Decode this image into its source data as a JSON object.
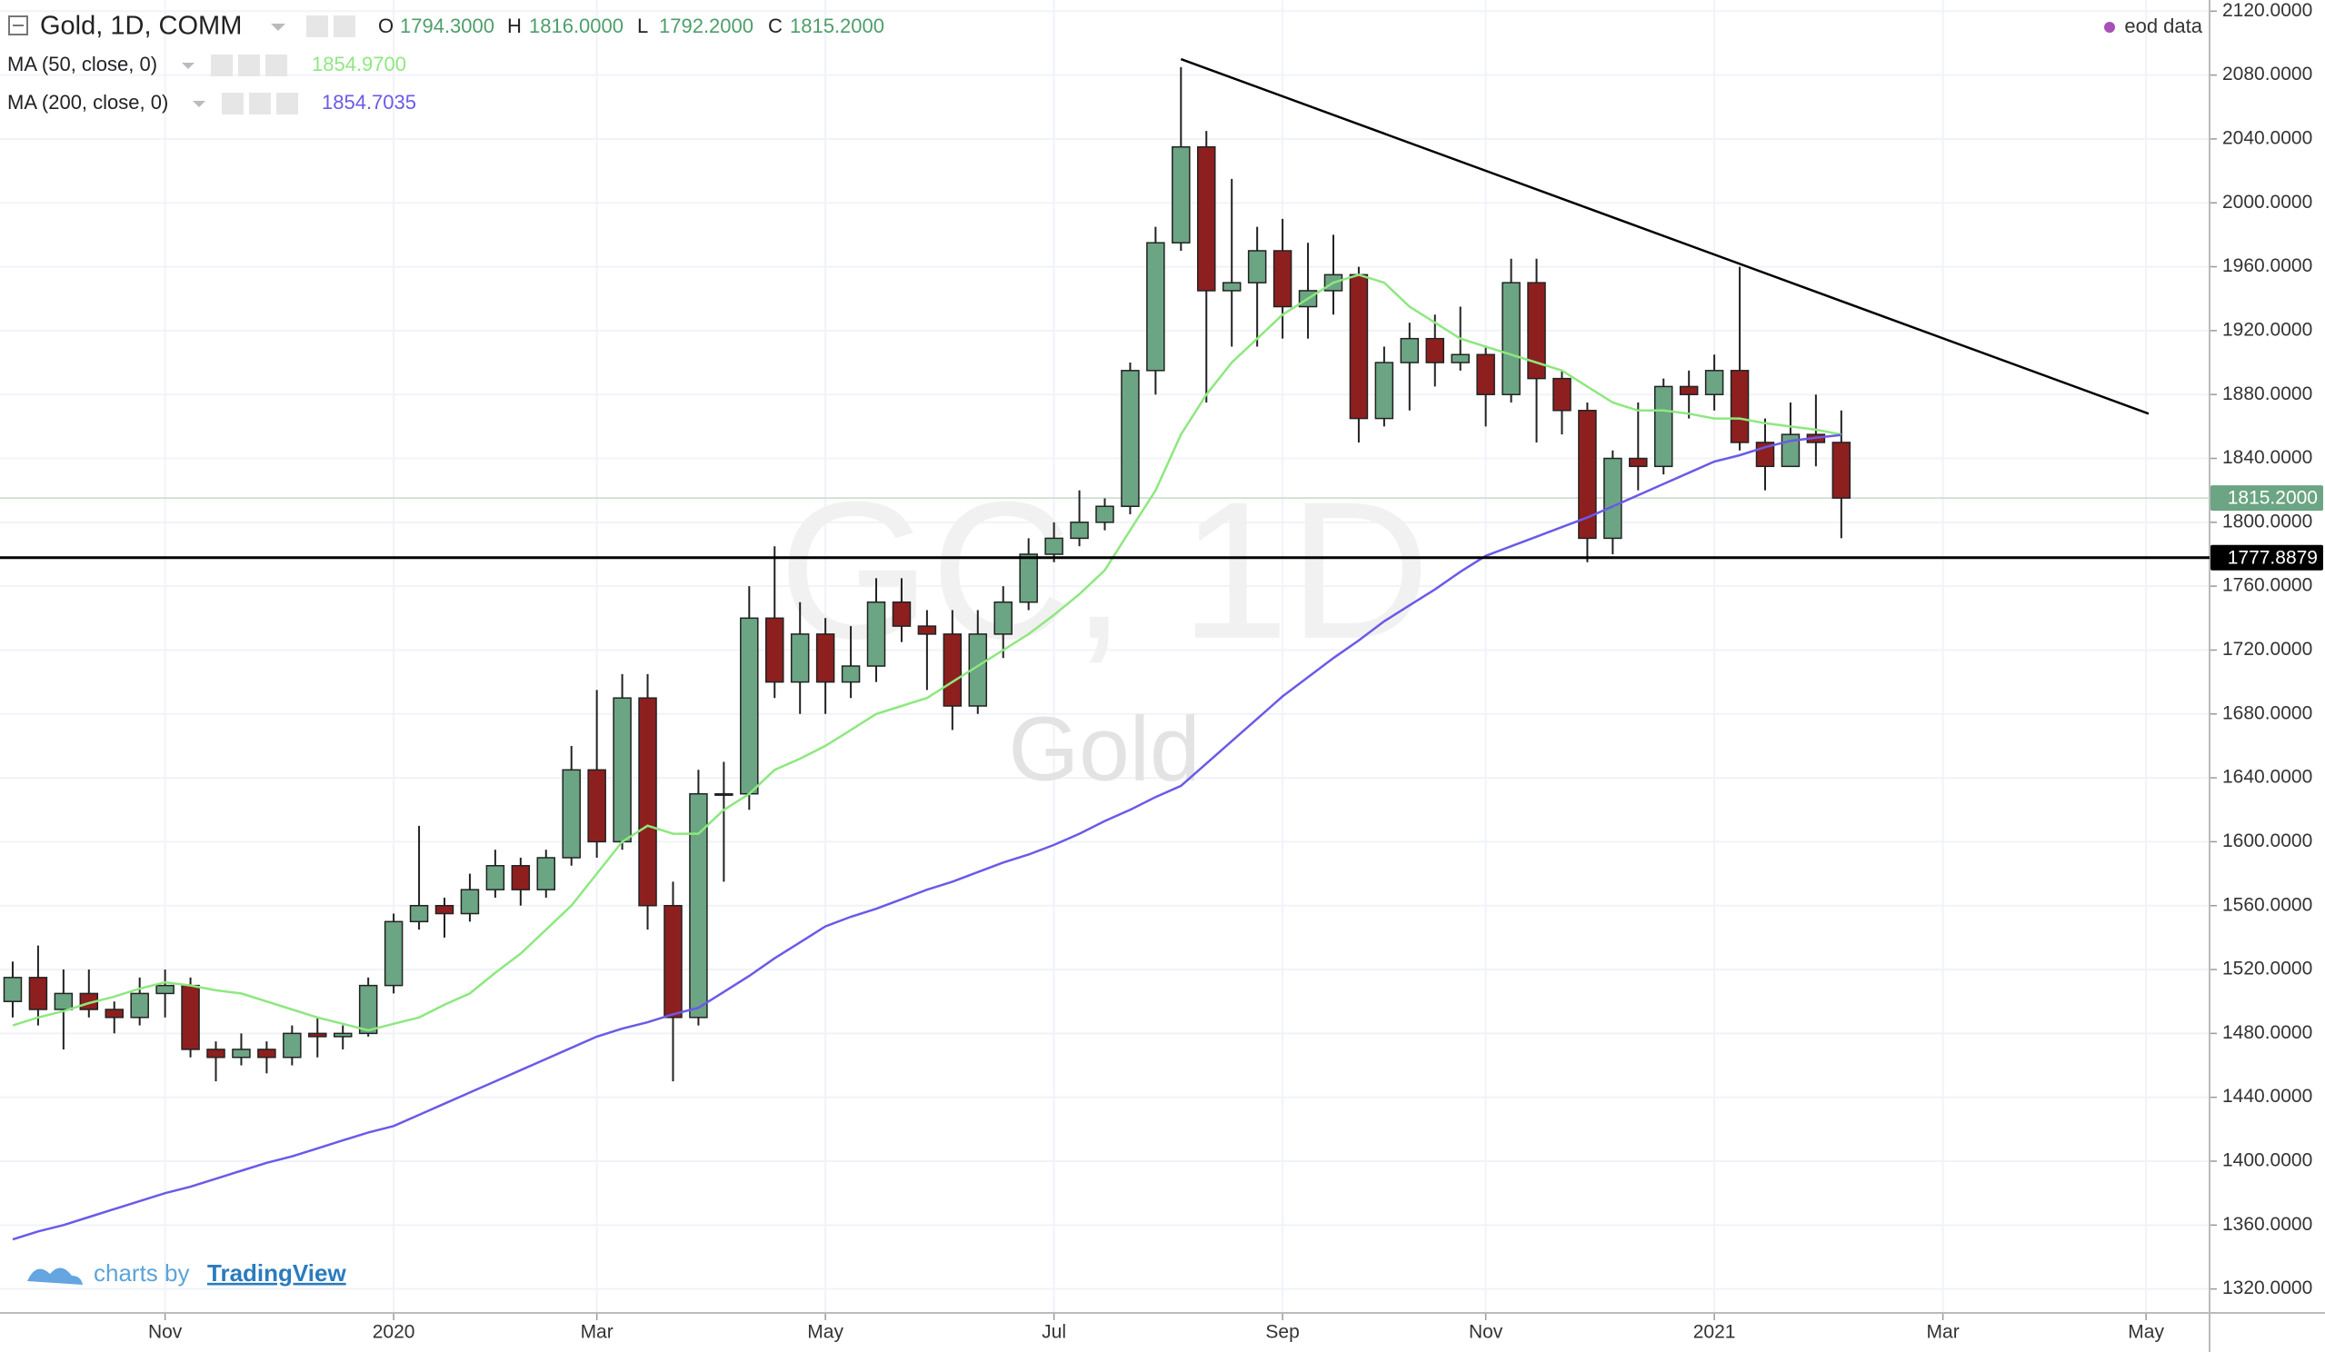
{
  "chart_data": {
    "type": "candlestick",
    "title": "Gold, 1D, COMM",
    "ohlc": [
      {
        "key": "O",
        "value": 1794.3,
        "label": "1794.3000"
      },
      {
        "key": "H",
        "value": 1816,
        "label": "1816.0000"
      },
      {
        "key": "L",
        "value": 1792.2,
        "label": "1792.2000"
      },
      {
        "key": "C",
        "value": 1815.2,
        "label": "1815.2000"
      }
    ],
    "source": "eod data",
    "watermark": {
      "symbol": "GC, 1D",
      "name": "Gold"
    },
    "credit": {
      "prefix": "charts by",
      "brand": "TradingView"
    },
    "categories": [
      null,
      null,
      null,
      null,
      null,
      null,
      "Nov",
      null,
      null,
      null,
      null,
      null,
      null,
      null,
      null,
      "2020",
      null,
      null,
      null,
      null,
      null,
      null,
      null,
      "Mar",
      null,
      null,
      null,
      null,
      null,
      null,
      null,
      null,
      "May",
      null,
      null,
      null,
      null,
      null,
      null,
      null,
      null,
      "Jul",
      null,
      null,
      null,
      null,
      null,
      null,
      null,
      null,
      "Sep",
      null,
      null,
      null,
      null,
      null,
      null,
      null,
      "Nov",
      null,
      null,
      null,
      null,
      null,
      null,
      null,
      null,
      "2021",
      null,
      null,
      null,
      null,
      null,
      null,
      null,
      null,
      "Mar",
      null,
      null,
      null,
      null,
      null,
      null,
      null,
      "May",
      null,
      null
    ],
    "open": [
      1500,
      1515,
      1495,
      1505,
      1495,
      1490,
      1505,
      1510,
      1470,
      1465,
      1470,
      1465,
      1480,
      1478,
      1480,
      1510,
      1550,
      1560,
      1555,
      1570,
      1585,
      1570,
      1590,
      1645,
      1600,
      1690,
      1560,
      1490,
      1630,
      1630,
      1740,
      1700,
      1730,
      1700,
      1710,
      1750,
      1735,
      1730,
      1685,
      1730,
      1750,
      1780,
      1790,
      1800,
      1810,
      1895,
      1975,
      2035,
      1945,
      1950,
      1970,
      1935,
      1945,
      1955,
      1865,
      1900,
      1915,
      1900,
      1905,
      1880,
      1950,
      1890,
      1870,
      1790,
      1840,
      1835,
      1885,
      1880,
      1895,
      1850,
      1835,
      1855,
      1850,
      null,
      null,
      null,
      null,
      null,
      null,
      null,
      null,
      null,
      null,
      null,
      null,
      null,
      null
    ],
    "high": [
      1525,
      1535,
      1520,
      1520,
      1500,
      1515,
      1520,
      1515,
      1475,
      1480,
      1475,
      1485,
      1490,
      1485,
      1515,
      1555,
      1610,
      1565,
      1580,
      1595,
      1590,
      1595,
      1660,
      1695,
      1705,
      1705,
      1575,
      1645,
      1650,
      1760,
      1785,
      1750,
      1740,
      1735,
      1765,
      1765,
      1745,
      1745,
      1745,
      1760,
      1790,
      1800,
      1820,
      1815,
      1900,
      1985,
      2085,
      2045,
      2015,
      1985,
      1990,
      1975,
      1980,
      1960,
      1910,
      1925,
      1930,
      1935,
      1910,
      1965,
      1965,
      1895,
      1875,
      1845,
      1875,
      1890,
      1895,
      1905,
      1960,
      1865,
      1875,
      1880,
      1870,
      null,
      null,
      null,
      null,
      null,
      null,
      null,
      null,
      null,
      null,
      null,
      null,
      null,
      null
    ],
    "low": [
      1490,
      1485,
      1470,
      1490,
      1480,
      1485,
      1490,
      1465,
      1450,
      1460,
      1455,
      1460,
      1465,
      1470,
      1478,
      1505,
      1545,
      1540,
      1550,
      1565,
      1560,
      1565,
      1585,
      1590,
      1595,
      1545,
      1450,
      1485,
      1575,
      1620,
      1690,
      1680,
      1680,
      1690,
      1700,
      1725,
      1695,
      1670,
      1680,
      1715,
      1745,
      1775,
      1785,
      1795,
      1805,
      1880,
      1970,
      1875,
      1910,
      1910,
      1915,
      1915,
      1930,
      1850,
      1860,
      1870,
      1885,
      1895,
      1860,
      1875,
      1850,
      1855,
      1775,
      1780,
      1820,
      1830,
      1865,
      1870,
      1845,
      1820,
      1835,
      1835,
      1790,
      null,
      null,
      null,
      null,
      null,
      null,
      null,
      null,
      null,
      null,
      null,
      null,
      null,
      null
    ],
    "close": [
      1515,
      1495,
      1505,
      1495,
      1490,
      1505,
      1510,
      1470,
      1465,
      1470,
      1465,
      1480,
      1478,
      1480,
      1510,
      1550,
      1560,
      1555,
      1570,
      1585,
      1570,
      1590,
      1645,
      1600,
      1690,
      1560,
      1490,
      1630,
      1630,
      1740,
      1700,
      1730,
      1700,
      1710,
      1750,
      1735,
      1730,
      1685,
      1730,
      1750,
      1780,
      1790,
      1800,
      1810,
      1895,
      1975,
      2035,
      1945,
      1950,
      1970,
      1935,
      1945,
      1955,
      1865,
      1900,
      1915,
      1900,
      1905,
      1880,
      1950,
      1890,
      1870,
      1790,
      1840,
      1835,
      1885,
      1880,
      1895,
      1850,
      1835,
      1855,
      1850,
      1815.2,
      null,
      null,
      null,
      null,
      null,
      null,
      null,
      null,
      null,
      null,
      null,
      null,
      null,
      null
    ],
    "up_color": "#6ba583",
    "down_color": "#8e1f1f",
    "series": [
      {
        "name": "MA (50, close, 0)",
        "color": "#8de87f",
        "legend_value": {
          "value": 1854.97,
          "label": "1854.9700"
        },
        "values": [
          1485,
          1490,
          1494,
          1499,
          1503,
          1508,
          1512,
          1510,
          1507,
          1505,
          1500,
          1495,
          1490,
          1486,
          1482,
          1486,
          1490,
          1498,
          1505,
          1518,
          1530,
          1545,
          1560,
          1580,
          1600,
          1610,
          1605,
          1605,
          1620,
          1630,
          1645,
          1652,
          1660,
          1670,
          1680,
          1685,
          1690,
          1700,
          1710,
          1720,
          1730,
          1742,
          1755,
          1770,
          1795,
          1820,
          1855,
          1880,
          1900,
          1915,
          1930,
          1940,
          1950,
          1955,
          1950,
          1935,
          1925,
          1915,
          1910,
          1905,
          1900,
          1895,
          1885,
          1875,
          1870,
          1870,
          1868,
          1865,
          1865,
          1862,
          1860,
          1858,
          1854.97,
          null,
          null,
          null,
          null,
          null,
          null,
          null,
          null,
          null,
          null,
          null,
          null,
          null,
          null
        ]
      },
      {
        "name": "MA (200, close, 0)",
        "color": "#6a5ae8",
        "legend_value": {
          "value": 1854.7035,
          "label": "1854.7035"
        },
        "values": [
          1351,
          1356,
          1360,
          1365,
          1370,
          1375,
          1380,
          1384,
          1389,
          1394,
          1399,
          1403,
          1408,
          1413,
          1418,
          1422,
          1429,
          1436,
          1443,
          1450,
          1457,
          1464,
          1471,
          1478,
          1483,
          1487,
          1492,
          1496,
          1506,
          1516,
          1527,
          1537,
          1547,
          1553,
          1558,
          1564,
          1570,
          1575,
          1581,
          1587,
          1592,
          1598,
          1605,
          1613,
          1620,
          1628,
          1635,
          1649,
          1663,
          1677,
          1691,
          1703,
          1715,
          1726,
          1738,
          1748,
          1758,
          1769,
          1779,
          1785,
          1791,
          1797,
          1803,
          1810,
          1817,
          1824,
          1831,
          1838,
          1842,
          1847,
          1851,
          1853,
          1854.7035,
          null,
          null,
          null,
          null,
          null,
          null,
          null,
          null,
          null,
          null,
          null,
          null,
          null,
          null
        ]
      }
    ],
    "last_price": {
      "value": 1815.2,
      "label": "1815.2000",
      "color": "#6ba583"
    },
    "horizontal_line": {
      "value": 1777.8879,
      "label": "1777.8879",
      "color": "#000000"
    },
    "trend_line": {
      "x": [
        46,
        84.1
      ],
      "y": [
        2090,
        1868
      ],
      "color": "#000000"
    },
    "ylim": [
      1305,
      2127
    ],
    "yticks": [
      {
        "value": 1320,
        "label": "1320.0000"
      },
      {
        "value": 1360,
        "label": "1360.0000"
      },
      {
        "value": 1400,
        "label": "1400.0000"
      },
      {
        "value": 1440,
        "label": "1440.0000"
      },
      {
        "value": 1480,
        "label": "1480.0000"
      },
      {
        "value": 1520,
        "label": "1520.0000"
      },
      {
        "value": 1560,
        "label": "1560.0000"
      },
      {
        "value": 1600,
        "label": "1600.0000"
      },
      {
        "value": 1640,
        "label": "1640.0000"
      },
      {
        "value": 1680,
        "label": "1680.0000"
      },
      {
        "value": 1720,
        "label": "1720.0000"
      },
      {
        "value": 1760,
        "label": "1760.0000"
      },
      {
        "value": 1800,
        "label": "1800.0000"
      },
      {
        "value": 1840,
        "label": "1840.0000"
      },
      {
        "value": 1880,
        "label": "1880.0000"
      },
      {
        "value": 1920,
        "label": "1920.0000"
      },
      {
        "value": 1960,
        "label": "1960.0000"
      },
      {
        "value": 2000,
        "label": "2000.0000"
      },
      {
        "value": 2040,
        "label": "2040.0000"
      },
      {
        "value": 2080,
        "label": "2080.0000"
      },
      {
        "value": 2120,
        "label": "2120.0000"
      }
    ],
    "grid": true
  }
}
